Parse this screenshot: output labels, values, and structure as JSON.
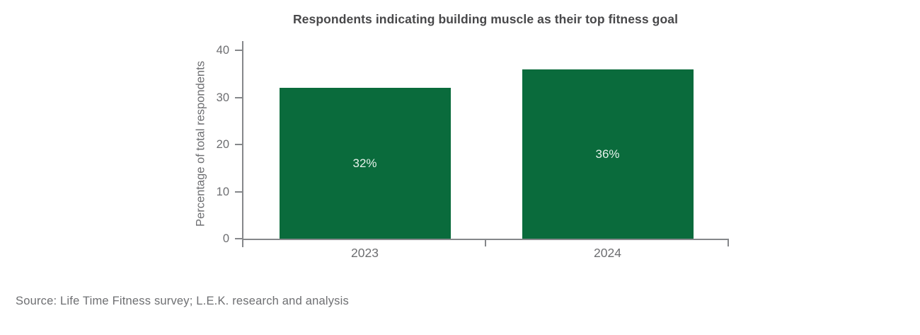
{
  "chart_data": {
    "type": "bar",
    "title": "Respondents indicating building muscle as their top fitness goal",
    "categories": [
      "2023",
      "2024"
    ],
    "values": [
      32,
      36
    ],
    "bar_labels": [
      "32%",
      "36%"
    ],
    "xlabel": "",
    "ylabel": "Percentage of total respondents",
    "ylim": [
      0,
      40
    ],
    "yticks": [
      0,
      10,
      20,
      30,
      40
    ],
    "grid": false,
    "legend": false,
    "bar_color": "#0a6b3c",
    "bar_label_color": "#e7f3ec"
  },
  "colors": {
    "title_text": "#48484a",
    "axis_line": "#85878a",
    "tick_label_text": "#6d6e71",
    "source_text": "#6e6f72",
    "background": "#ffffff"
  },
  "source_note": "Source: Life Time Fitness survey; L.E.K. research and analysis"
}
